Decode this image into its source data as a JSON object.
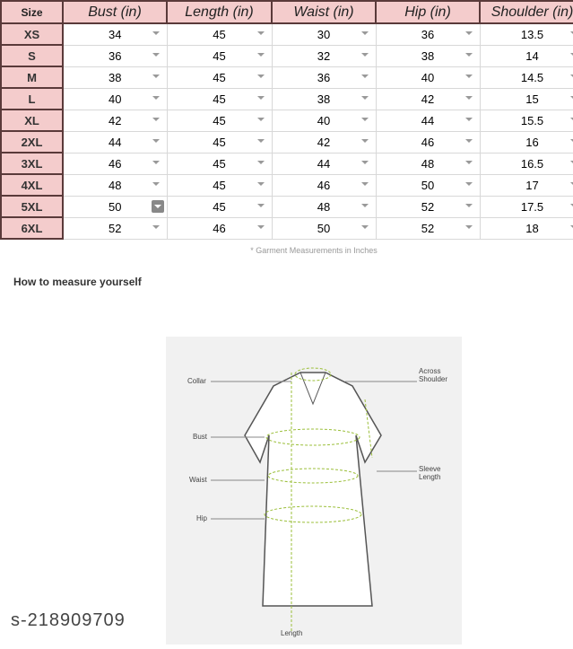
{
  "table": {
    "headers": [
      "Size",
      "Bust (in)",
      "Length (in)",
      "Waist (in)",
      "Hip (in)",
      "Shoulder (in)"
    ],
    "rows": [
      [
        "XS",
        "34",
        "45",
        "30",
        "36",
        "13.5"
      ],
      [
        "S",
        "36",
        "45",
        "32",
        "38",
        "14"
      ],
      [
        "M",
        "38",
        "45",
        "36",
        "40",
        "14.5"
      ],
      [
        "L",
        "40",
        "45",
        "38",
        "42",
        "15"
      ],
      [
        "XL",
        "42",
        "45",
        "40",
        "44",
        "15.5"
      ],
      [
        "2XL",
        "44",
        "45",
        "42",
        "46",
        "16"
      ],
      [
        "3XL",
        "46",
        "45",
        "44",
        "48",
        "16.5"
      ],
      [
        "4XL",
        "48",
        "45",
        "46",
        "50",
        "17"
      ],
      [
        "5XL",
        "50",
        "45",
        "48",
        "52",
        "17.5"
      ],
      [
        "6XL",
        "52",
        "46",
        "50",
        "52",
        "18"
      ]
    ]
  },
  "note": "* Garment Measurements in Inches",
  "how_title": "How to measure yourself",
  "diagram": {
    "labels": {
      "collar": "Collar",
      "across_shoulder": "Across Shoulder",
      "bust": "Bust",
      "waist": "Waist",
      "hip": "Hip",
      "sleeve_length": "Sleeve Length",
      "length": "Length"
    }
  },
  "watermark": "s-218909709"
}
